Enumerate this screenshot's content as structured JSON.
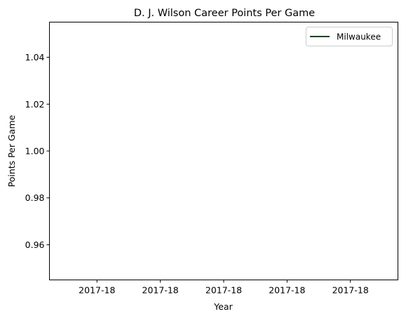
{
  "chart_data": {
    "type": "line",
    "title": "D. J. Wilson Career Points Per Game",
    "xlabel": "Year",
    "ylabel": "Points Per Game",
    "x_tick_labels": [
      "2017-18",
      "2017-18",
      "2017-18",
      "2017-18",
      "2017-18"
    ],
    "y_ticks": [
      0.96,
      0.98,
      1.0,
      1.02,
      1.04
    ],
    "y_tick_labels": [
      "0.96",
      "0.98",
      "1.00",
      "1.02",
      "1.04"
    ],
    "ylim": [
      0.945,
      1.055
    ],
    "grid": false,
    "legend_position": "top-right",
    "series": [
      {
        "name": "Milwaukee",
        "color": "#00471B",
        "x": [
          "2017-18"
        ],
        "y": [
          1.0
        ]
      }
    ]
  }
}
